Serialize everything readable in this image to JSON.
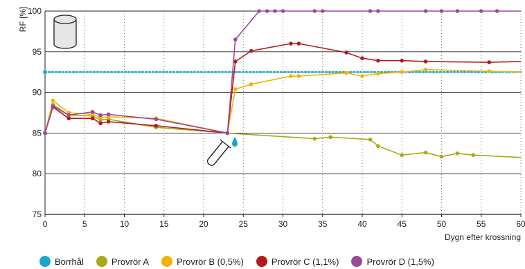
{
  "chart_data": {
    "type": "line",
    "xlabel": "Dygn efter krossning",
    "ylabel": "RF [%]",
    "xlim": [
      0,
      60
    ],
    "ylim": [
      75,
      100
    ],
    "xticks": [
      0,
      5,
      10,
      15,
      20,
      25,
      30,
      35,
      40,
      45,
      50,
      55,
      60
    ],
    "yticks": [
      75,
      80,
      85,
      90,
      95,
      100
    ],
    "grid": "horizontal solid, vertical dotted",
    "legend_position": "bottom",
    "series": [
      {
        "name": "Borrhål",
        "color": "#1aa6c8",
        "style": "dotted",
        "x": [
          0,
          60
        ],
        "y": [
          92.5,
          92.5
        ]
      },
      {
        "name": "Provrör A",
        "color": "#a8a81a",
        "style": "solid",
        "x": [
          0,
          1,
          3,
          6,
          7,
          8,
          14,
          23,
          34,
          36,
          41,
          42,
          45,
          48,
          50,
          52,
          54,
          60
        ],
        "y": [
          85.0,
          88.5,
          87.2,
          87.1,
          86.6,
          86.7,
          85.7,
          85.0,
          84.3,
          84.5,
          84.2,
          83.4,
          82.3,
          82.6,
          82.1,
          82.5,
          82.3,
          82.0
        ]
      },
      {
        "name": "Provrör B (0,5%)",
        "color": "#f0b400",
        "style": "solid",
        "x": [
          0,
          1,
          3,
          6,
          7,
          8,
          14,
          23,
          24,
          26,
          31,
          32,
          38,
          40,
          42,
          45,
          48,
          56,
          60
        ],
        "y": [
          85.0,
          89.0,
          87.5,
          87.3,
          86.9,
          87.0,
          86.8,
          85.0,
          90.4,
          91.0,
          92.0,
          92.0,
          92.4,
          92.0,
          92.3,
          92.5,
          92.8,
          92.6,
          92.5
        ]
      },
      {
        "name": "Provrör C (1,1%)",
        "color": "#b31b1b",
        "style": "solid",
        "x": [
          0,
          1,
          3,
          6,
          7,
          8,
          14,
          23,
          24,
          26,
          31,
          32,
          38,
          40,
          42,
          45,
          48,
          56,
          60
        ],
        "y": [
          85.0,
          88.2,
          86.8,
          86.8,
          86.2,
          86.4,
          85.9,
          85.0,
          93.8,
          95.1,
          96.0,
          96.0,
          94.9,
          94.2,
          93.9,
          93.9,
          93.8,
          93.7,
          93.8
        ]
      },
      {
        "name": "Provrör D (1,5%)",
        "color": "#9a4a9a",
        "style": "solid",
        "x": [
          0,
          1,
          3,
          6,
          7,
          8,
          14,
          23,
          24,
          27,
          28,
          29,
          30,
          34,
          35,
          41,
          42,
          48,
          50,
          52,
          55,
          57,
          60
        ],
        "y": [
          85.0,
          88.3,
          87.2,
          87.6,
          87.2,
          87.3,
          86.7,
          85.0,
          96.5,
          100,
          100,
          100,
          100,
          100,
          100,
          100,
          100,
          100,
          100,
          100,
          100,
          100,
          100
        ]
      }
    ]
  }
}
